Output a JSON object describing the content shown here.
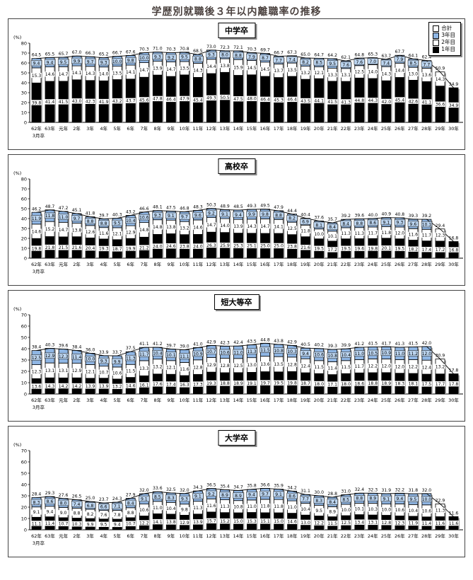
{
  "page_title": "学歴別就職後３年以内離職率の推移",
  "colors": {
    "bar_year3_blue": "#8FB6E4",
    "bar_year3_label_box": "#BCD5F0",
    "bar_year2_white": "#FFFFFF",
    "bar_year1_black": "#000000",
    "total_line": "#000000",
    "panel_border": "#444444",
    "title_text": "#4a413e"
  },
  "legend": {
    "position": "top-right",
    "items": [
      {
        "label": "合計",
        "color": "#FFFFFF"
      },
      {
        "label": "3年目",
        "color": "#8FB6E4"
      },
      {
        "label": "2年目",
        "color": "#FFFFFF"
      },
      {
        "label": "1年目",
        "color": "#000000"
      }
    ]
  },
  "x_axis": {
    "categories": [
      "62年",
      "63年",
      "元年",
      "2年",
      "3年",
      "4年",
      "5年",
      "6年",
      "7年",
      "8年",
      "9年",
      "10年",
      "11年",
      "12年",
      "13年",
      "14年",
      "15年",
      "16年",
      "17年",
      "18年",
      "19年",
      "20年",
      "21年",
      "22年",
      "23年",
      "24年",
      "25年",
      "26年",
      "27年",
      "28年",
      "29年",
      "30年"
    ],
    "first_category_note": "3月卒"
  },
  "chart_data": [
    {
      "type": "bar",
      "stacked": true,
      "title": "中学卒",
      "unit_label": "(%)",
      "x_note": "3月卒",
      "grid": false,
      "ylim": [
        0,
        80
      ],
      "ytick_step": 10,
      "categories": [
        "62年",
        "63年",
        "元年",
        "2年",
        "3年",
        "4年",
        "5年",
        "6年",
        "7年",
        "8年",
        "9年",
        "10年",
        "11年",
        "12年",
        "13年",
        "14年",
        "15年",
        "16年",
        "17年",
        "18年",
        "19年",
        "20年",
        "21年",
        "22年",
        "23年",
        "24年",
        "25年",
        "26年",
        "27年",
        "28年",
        "29年",
        "30年"
      ],
      "series": [
        {
          "name": "1年目",
          "color": "#000000",
          "values": [
            39.8,
            41.4,
            41.5,
            43.0,
            42.3,
            41.9,
            43.2,
            43.7,
            45.6,
            47.8,
            46.4,
            47.9,
            45.4,
            49.3,
            50.5,
            47.5,
            48.0,
            46.4,
            45.3,
            46.4,
            43.5,
            44.1,
            41.5,
            41.3,
            44.8,
            44.3,
            42.0,
            45.4,
            42.6,
            41.1,
            36.6,
            34.9
          ]
        },
        {
          "name": "2年目",
          "color": "#FFFFFF",
          "values": [
            15.3,
            14.6,
            14.7,
            14.1,
            14.3,
            14.0,
            13.5,
            14.1,
            14.7,
            13.9,
            14.7,
            13.5,
            14.3,
            14.4,
            13.8,
            15.9,
            14.5,
            14.5,
            13.7,
            13.5,
            13.2,
            12.1,
            13.3,
            13.1,
            12.5,
            14.0,
            14.3,
            14.4,
            13.0,
            13.6,
            14.3,
            null
          ]
        },
        {
          "name": "3年目",
          "color": "#8FB6E4",
          "values": [
            9.4,
            9.4,
            9.5,
            9.9,
            9.7,
            9.3,
            10.0,
            9.8,
            10.0,
            9.3,
            9.2,
            9.5,
            8.8,
            9.3,
            8.0,
            8.8,
            7.9,
            8.7,
            7.7,
            7.4,
            8.2,
            8.5,
            9.5,
            7.6,
            7.6,
            7.0,
            7.4,
            7.9,
            8.5,
            7.7,
            null,
            null
          ]
        }
      ],
      "totals": [
        64.5,
        65.5,
        65.7,
        67.0,
        66.3,
        65.2,
        66.7,
        67.6,
        70.3,
        71.0,
        70.3,
        70.8,
        68.5,
        73.0,
        72.3,
        72.1,
        70.3,
        69.7,
        66.7,
        67.3,
        65.0,
        64.7,
        64.2,
        62.1,
        64.8,
        65.3,
        63.7,
        67.7,
        64.1,
        62.4,
        50.9,
        34.9
      ]
    },
    {
      "type": "bar",
      "stacked": true,
      "title": "高校卒",
      "unit_label": "(%)",
      "x_note": "3月卒",
      "grid": false,
      "ylim": [
        0,
        80
      ],
      "ytick_step": 10,
      "categories": [
        "62年",
        "63年",
        "元年",
        "2年",
        "3年",
        "4年",
        "5年",
        "6年",
        "7年",
        "8年",
        "9年",
        "10年",
        "11年",
        "12年",
        "13年",
        "14年",
        "15年",
        "16年",
        "17年",
        "18年",
        "19年",
        "20年",
        "21年",
        "22年",
        "23年",
        "24年",
        "25年",
        "26年",
        "27年",
        "28年",
        "29年",
        "30年"
      ],
      "series": [
        {
          "name": "1年目",
          "color": "#000000",
          "values": [
            19.8,
            21.8,
            21.5,
            21.6,
            20.4,
            19.3,
            18.7,
            19.9,
            21.2,
            24.0,
            24.6,
            23.8,
            24.0,
            26.3,
            25.9,
            25.3,
            25.1,
            25.0,
            25.0,
            23.8,
            21.6,
            19.5,
            17.2,
            19.5,
            19.6,
            19.8,
            20.1,
            19.5,
            18.2,
            17.4,
            17.2,
            16.8
          ]
        },
        {
          "name": "2年目",
          "color": "#FFFFFF",
          "values": [
            14.6,
            15.2,
            14.7,
            13.8,
            12.6,
            11.6,
            12.1,
            12.9,
            14.8,
            14.8,
            13.8,
            13.2,
            14.6,
            14.7,
            14.0,
            13.9,
            14.3,
            14.7,
            14.1,
            12.5,
            11.8,
            10.0,
            10.1,
            11.3,
            11.3,
            11.7,
            11.8,
            12.0,
            11.6,
            11.7,
            12.3,
            null
          ]
        },
        {
          "name": "3年目",
          "color": "#8FB6E4",
          "values": [
            11.9,
            11.8,
            11.0,
            9.7,
            8.8,
            8.8,
            9.5,
            10.4,
            10.6,
            9.3,
            9.1,
            9.7,
            9.6,
            9.2,
            9.1,
            9.4,
            9.9,
            9.8,
            8.8,
            8.2,
            6.9,
            8.1,
            8.4,
            8.4,
            8.8,
            8.6,
            9.1,
            9.3,
            9.6,
            10.1,
            null,
            null
          ]
        }
      ],
      "totals": [
        46.2,
        48.7,
        47.2,
        45.1,
        41.8,
        39.7,
        40.3,
        43.2,
        46.6,
        48.1,
        47.5,
        46.8,
        48.3,
        50.3,
        48.9,
        48.5,
        49.3,
        49.5,
        47.9,
        44.4,
        40.4,
        37.6,
        35.7,
        39.2,
        39.6,
        40.0,
        40.9,
        40.8,
        39.3,
        39.2,
        29.4,
        16.8
      ]
    },
    {
      "type": "bar",
      "stacked": true,
      "title": "短大等卒",
      "unit_label": "(%)",
      "x_note": "3月卒",
      "grid": false,
      "ylim": [
        0,
        70
      ],
      "ytick_step": 10,
      "categories": [
        "62年",
        "63年",
        "元年",
        "2年",
        "3年",
        "4年",
        "5年",
        "6年",
        "7年",
        "8年",
        "9年",
        "10年",
        "11年",
        "12年",
        "13年",
        "14年",
        "15年",
        "16年",
        "17年",
        "18年",
        "19年",
        "20年",
        "21年",
        "22年",
        "23年",
        "24年",
        "25年",
        "26年",
        "27年",
        "28年",
        "29年",
        "30年"
      ],
      "series": [
        {
          "name": "1年目",
          "color": "#000000",
          "values": [
            13.6,
            14.3,
            14.2,
            14.2,
            13.9,
            13.9,
            13.2,
            14.6,
            16.1,
            17.6,
            17.4,
            16.3,
            17.3,
            19.3,
            18.8,
            18.9,
            19.1,
            19.7,
            19.5,
            19.8,
            18.7,
            18.0,
            17.1,
            18.0,
            18.6,
            18.8,
            18.9,
            18.3,
            18.1,
            17.5,
            17.7,
            17.8
          ]
        },
        {
          "name": "2年目",
          "color": "#FFFFFF",
          "values": [
            12.3,
            13.1,
            13.1,
            12.9,
            12.1,
            10.7,
            10.6,
            11.5,
            13.3,
            13.2,
            12.1,
            11.6,
            12.8,
            12.9,
            12.8,
            12.5,
            13.0,
            13.6,
            13.5,
            12.8,
            12.4,
            11.5,
            11.4,
            11.5,
            11.7,
            12.2,
            12.0,
            12.0,
            12.2,
            12.4,
            13.2,
            null
          ]
        },
        {
          "name": "3年目",
          "color": "#8FB6E4",
          "values": [
            12.5,
            12.9,
            12.3,
            11.4,
            10.0,
            9.3,
            9.9,
            11.3,
            11.7,
            10.4,
            10.1,
            11.1,
            10.9,
            10.7,
            10.6,
            11.0,
            11.3,
            11.5,
            10.8,
            10.3,
            9.4,
            10.6,
            10.8,
            10.4,
            11.0,
            10.5,
            10.9,
            11.0,
            11.2,
            12.0,
            null,
            null
          ]
        }
      ],
      "totals": [
        38.4,
        40.3,
        39.6,
        38.4,
        36.0,
        33.9,
        33.7,
        37.5,
        41.1,
        41.2,
        39.7,
        39.0,
        41.0,
        42.9,
        42.3,
        42.4,
        43.5,
        44.8,
        43.8,
        42.9,
        40.5,
        40.2,
        39.3,
        39.9,
        41.2,
        41.5,
        41.7,
        41.3,
        41.5,
        42.0,
        30.9,
        17.8
      ]
    },
    {
      "type": "bar",
      "stacked": true,
      "title": "大学卒",
      "unit_label": "(%)",
      "x_note": "3月卒",
      "grid": false,
      "ylim": [
        0,
        70
      ],
      "ytick_step": 10,
      "categories": [
        "62年",
        "63年",
        "元年",
        "2年",
        "3年",
        "4年",
        "5年",
        "6年",
        "7年",
        "8年",
        "9年",
        "10年",
        "11年",
        "12年",
        "13年",
        "14年",
        "15年",
        "16年",
        "17年",
        "18年",
        "19年",
        "20年",
        "21年",
        "22年",
        "23年",
        "24年",
        "25年",
        "26年",
        "27年",
        "28年",
        "29年",
        "30年"
      ],
      "series": [
        {
          "name": "1年目",
          "color": "#000000",
          "values": [
            11.1,
            11.4,
            10.7,
            10.3,
            9.9,
            9.5,
            9.4,
            10.7,
            12.2,
            14.1,
            13.8,
            12.9,
            13.9,
            15.7,
            15.2,
            15.0,
            15.3,
            15.1,
            15.0,
            14.6,
            13.0,
            12.2,
            11.5,
            12.5,
            13.4,
            13.1,
            12.8,
            12.3,
            11.9,
            11.4,
            11.6,
            11.6
          ]
        },
        {
          "name": "2年目",
          "color": "#FFFFFF",
          "values": [
            9.1,
            9.4,
            9.0,
            8.8,
            8.2,
            7.6,
            7.8,
            8.8,
            10.6,
            11.0,
            10.4,
            9.8,
            11.3,
            11.6,
            11.3,
            10.8,
            11.0,
            11.8,
            11.8,
            11.0,
            10.4,
            9.5,
            8.9,
            10.0,
            10.1,
            10.3,
            10.0,
            10.6,
            10.4,
            10.6,
            11.3,
            null
          ]
        },
        {
          "name": "3年目",
          "color": "#8FB6E4",
          "values": [
            8.3,
            8.6,
            8.0,
            7.4,
            6.8,
            6.6,
            7.1,
            8.4,
            9.1,
            8.5,
            8.3,
            9.3,
            9.1,
            9.2,
            8.9,
            8.9,
            9.4,
            9.7,
            9.1,
            8.6,
            7.7,
            8.3,
            8.4,
            8.5,
            8.8,
            8.9,
            9.1,
            9.4,
            9.5,
            10.0,
            null,
            null
          ]
        }
      ],
      "totals": [
        28.4,
        29.3,
        27.6,
        26.5,
        25.0,
        23.7,
        24.3,
        27.9,
        32.0,
        33.6,
        32.5,
        32.0,
        34.3,
        36.5,
        35.4,
        34.7,
        35.8,
        36.6,
        35.9,
        34.2,
        31.1,
        30.0,
        28.8,
        31.0,
        32.4,
        32.3,
        31.9,
        32.2,
        31.8,
        32.0,
        22.9,
        11.6
      ]
    }
  ]
}
